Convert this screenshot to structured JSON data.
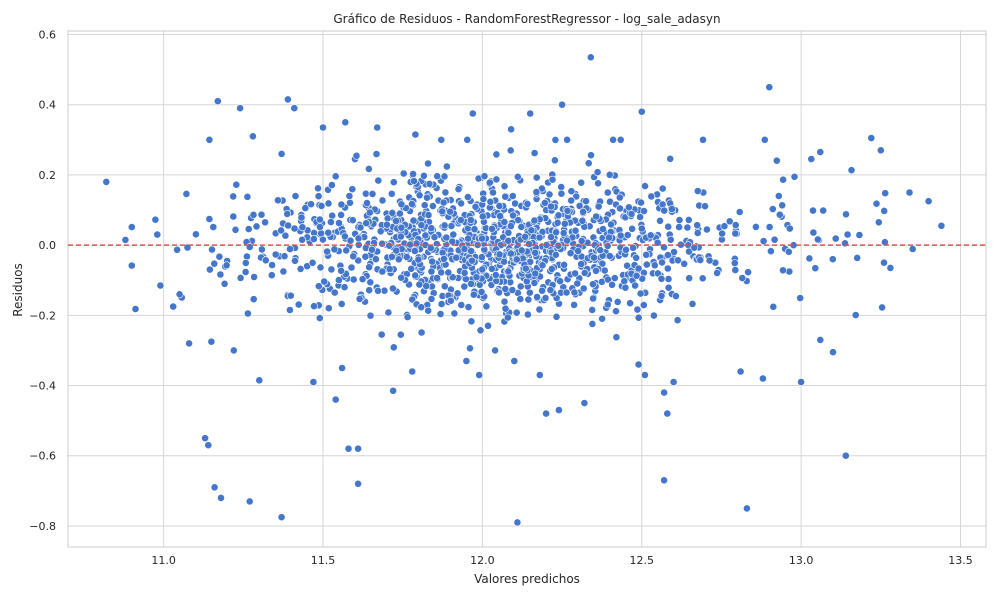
{
  "chart_data": {
    "type": "scatter",
    "title": "Gráfico de Residuos - RandomForestRegressor - log_sale_adasyn",
    "xlabel": "Valores predichos",
    "ylabel": "Residuos",
    "xlim": [
      10.7,
      13.58
    ],
    "ylim": [
      -0.86,
      0.61
    ],
    "x_ticks": [
      "11.0",
      "11.5",
      "12.0",
      "12.5",
      "13.0",
      "13.5"
    ],
    "x_tick_values": [
      11.0,
      11.5,
      12.0,
      12.5,
      13.0,
      13.5
    ],
    "y_ticks": [
      "−0.8",
      "−0.6",
      "−0.4",
      "−0.2",
      "0.0",
      "0.2",
      "0.4",
      "0.6"
    ],
    "y_tick_values": [
      -0.8,
      -0.6,
      -0.4,
      -0.2,
      0.0,
      0.2,
      0.4,
      0.6
    ],
    "grid": true,
    "reference_line": {
      "y": 0.0,
      "style": "dashed",
      "color": "#d9534f"
    },
    "point_color": "#4477cc",
    "approx_point_count": 1400,
    "outliers": [
      {
        "x": 10.82,
        "y": 0.18
      },
      {
        "x": 10.98,
        "y": 0.03
      },
      {
        "x": 11.17,
        "y": 0.41
      },
      {
        "x": 11.39,
        "y": 0.415
      },
      {
        "x": 11.41,
        "y": 0.39
      },
      {
        "x": 11.24,
        "y": 0.39
      },
      {
        "x": 12.34,
        "y": 0.535
      },
      {
        "x": 12.25,
        "y": 0.4
      },
      {
        "x": 12.9,
        "y": 0.45
      },
      {
        "x": 11.97,
        "y": 0.375
      },
      {
        "x": 12.5,
        "y": 0.38
      },
      {
        "x": 11.13,
        "y": -0.55
      },
      {
        "x": 11.14,
        "y": -0.57
      },
      {
        "x": 11.16,
        "y": -0.69
      },
      {
        "x": 11.18,
        "y": -0.72
      },
      {
        "x": 11.27,
        "y": -0.73
      },
      {
        "x": 11.37,
        "y": -0.775
      },
      {
        "x": 11.58,
        "y": -0.58
      },
      {
        "x": 11.61,
        "y": -0.58
      },
      {
        "x": 11.61,
        "y": -0.68
      },
      {
        "x": 12.11,
        "y": -0.79
      },
      {
        "x": 12.57,
        "y": -0.67
      },
      {
        "x": 12.83,
        "y": -0.75
      },
      {
        "x": 13.14,
        "y": -0.6
      },
      {
        "x": 11.54,
        "y": -0.44
      },
      {
        "x": 12.2,
        "y": -0.48
      },
      {
        "x": 12.24,
        "y": -0.47
      },
      {
        "x": 12.32,
        "y": -0.45
      },
      {
        "x": 12.58,
        "y": -0.48
      },
      {
        "x": 12.57,
        "y": -0.42
      },
      {
        "x": 13.0,
        "y": -0.39
      },
      {
        "x": 11.3,
        "y": -0.385
      },
      {
        "x": 11.47,
        "y": -0.39
      },
      {
        "x": 12.88,
        "y": -0.38
      },
      {
        "x": 13.34,
        "y": 0.15
      },
      {
        "x": 13.4,
        "y": 0.125
      },
      {
        "x": 13.44,
        "y": 0.055
      },
      {
        "x": 13.25,
        "y": 0.27
      },
      {
        "x": 13.22,
        "y": 0.305
      },
      {
        "x": 13.06,
        "y": 0.265
      },
      {
        "x": 12.93,
        "y": 0.14
      },
      {
        "x": 13.28,
        "y": -0.065
      },
      {
        "x": 13.26,
        "y": -0.05
      },
      {
        "x": 13.1,
        "y": -0.305
      },
      {
        "x": 13.06,
        "y": -0.27
      },
      {
        "x": 10.88,
        "y": 0.015
      },
      {
        "x": 10.99,
        "y": -0.115
      },
      {
        "x": 11.03,
        "y": -0.175
      },
      {
        "x": 11.05,
        "y": -0.14
      },
      {
        "x": 11.08,
        "y": -0.28
      },
      {
        "x": 11.15,
        "y": -0.275
      },
      {
        "x": 11.22,
        "y": -0.3
      },
      {
        "x": 11.28,
        "y": 0.31
      },
      {
        "x": 11.37,
        "y": 0.26
      },
      {
        "x": 11.5,
        "y": 0.335
      },
      {
        "x": 11.57,
        "y": 0.35
      },
      {
        "x": 11.67,
        "y": 0.335
      },
      {
        "x": 11.79,
        "y": 0.315
      },
      {
        "x": 12.09,
        "y": 0.33
      },
      {
        "x": 12.15,
        "y": 0.375
      },
      {
        "x": 11.56,
        "y": -0.35
      },
      {
        "x": 11.72,
        "y": -0.415
      },
      {
        "x": 11.78,
        "y": -0.36
      },
      {
        "x": 11.95,
        "y": -0.33
      },
      {
        "x": 11.99,
        "y": -0.37
      },
      {
        "x": 12.18,
        "y": -0.37
      },
      {
        "x": 12.1,
        "y": -0.33
      },
      {
        "x": 12.04,
        "y": -0.3
      },
      {
        "x": 12.51,
        "y": -0.37
      },
      {
        "x": 12.6,
        "y": -0.39
      },
      {
        "x": 12.81,
        "y": -0.36
      }
    ]
  }
}
